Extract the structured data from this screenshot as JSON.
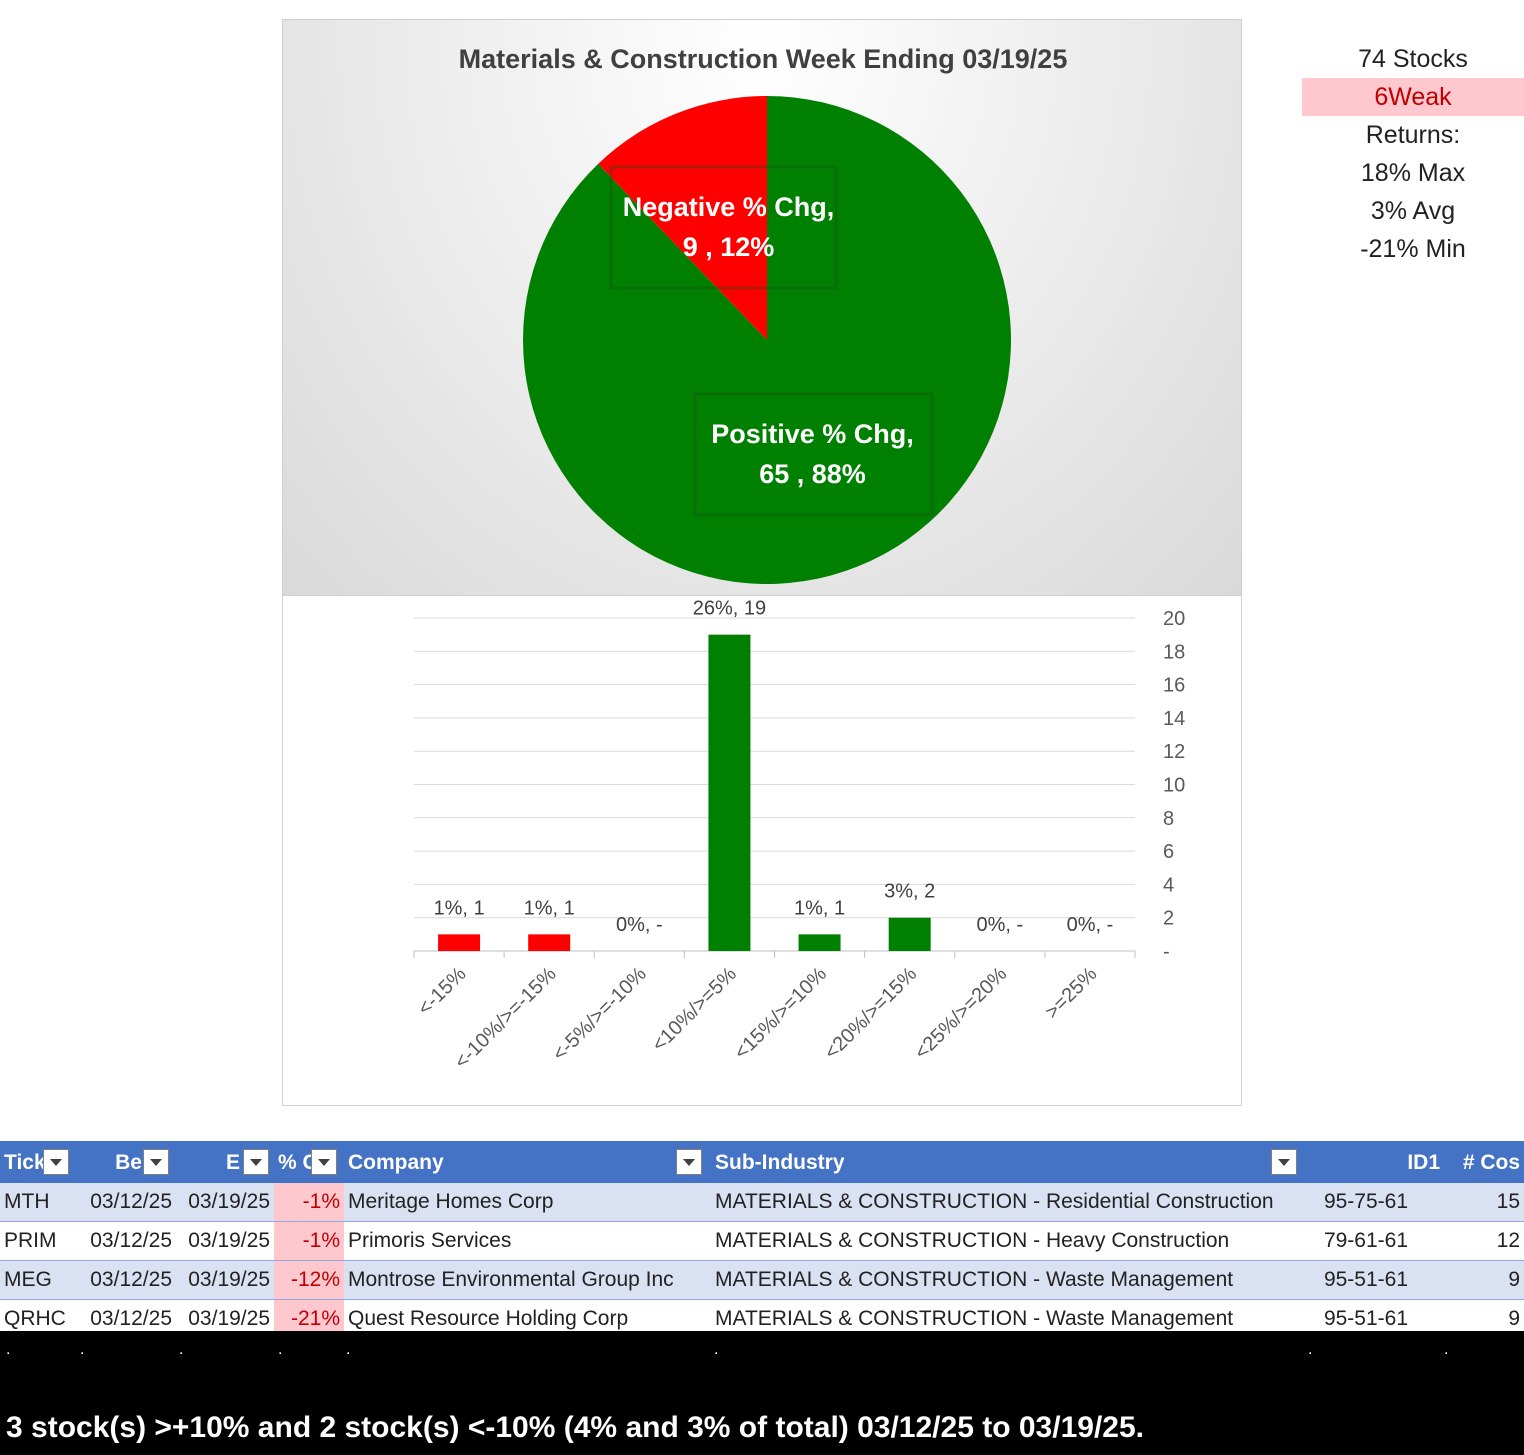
{
  "pie_chart": {
    "title": "Materials & Construction Week Ending 03/19/25",
    "slices": [
      {
        "name": "Negative % Chg",
        "count": 9,
        "pct": "12%",
        "color": "#ff0000"
      },
      {
        "name": "Positive % Chg",
        "count": 65,
        "pct": "88%",
        "color": "#008000"
      }
    ],
    "labels": {
      "negative_line1": "Negative % Chg,",
      "negative_line2": "9 , 12%",
      "positive_line1": "Positive % Chg,",
      "positive_line2": "65 , 88%"
    }
  },
  "chart_data": {
    "type": "bar",
    "categories": [
      "<-15%",
      "<-10%/>=-15%",
      "<-5%/>=-10%",
      "<10%/>=5%",
      "<15%/>=10%",
      "<20%/>=15%",
      "<25%/>=20%",
      ">=25%"
    ],
    "values": [
      1,
      1,
      0,
      19,
      1,
      2,
      0,
      0
    ],
    "data_labels": [
      "1%,  1",
      "1%,  1",
      "0%,  -",
      "26%,  19",
      "1%,  1",
      "3%,  2",
      "0%,  -",
      "0%,  -"
    ],
    "colors": [
      "#ff0000",
      "#ff0000",
      "#ff0000",
      "#008000",
      "#008000",
      "#008000",
      "#008000",
      "#008000"
    ],
    "ylim": [
      0,
      20
    ],
    "yticks": [
      0,
      2,
      4,
      6,
      8,
      10,
      12,
      14,
      16,
      18,
      20
    ],
    "ytick_labels": [
      "-",
      "2",
      "4",
      "6",
      "8",
      "10",
      "12",
      "14",
      "16",
      "18",
      "20"
    ],
    "y_axis_side": "right",
    "grid": true
  },
  "stats": {
    "stocks": "74 Stocks",
    "weak": "6Weak",
    "returns": "Returns:",
    "max": "18% Max",
    "avg": "3% Avg",
    "min": "-21% Min"
  },
  "table": {
    "headers": [
      "Tick",
      "Be",
      "E",
      "% C",
      "Company",
      "Sub-Industry",
      "ID1",
      "# Cos"
    ],
    "rows": [
      [
        "MTH",
        "03/12/25",
        "03/19/25",
        "-1%",
        "Meritage Homes Corp",
        "MATERIALS & CONSTRUCTION - Residential Construction",
        "95-75-61",
        "15"
      ],
      [
        "PRIM",
        "03/12/25",
        "03/19/25",
        "-1%",
        "Primoris Services",
        "MATERIALS & CONSTRUCTION - Heavy Construction",
        "79-61-61",
        "12"
      ],
      [
        "MEG",
        "03/12/25",
        "03/19/25",
        "-12%",
        "Montrose Environmental Group Inc",
        "MATERIALS & CONSTRUCTION - Waste Management",
        "95-51-61",
        "9"
      ],
      [
        "QRHC",
        "03/12/25",
        "03/19/25",
        "-21%",
        "Quest Resource Holding Corp",
        "MATERIALS & CONSTRUCTION - Waste Management",
        "95-51-61",
        "9"
      ]
    ]
  },
  "footer": {
    "dots": [
      ".",
      ".",
      ".",
      ".",
      ".",
      ".",
      ".",
      "."
    ],
    "summary": "3 stock(s) >+10% and 2 stock(s) <-10% (4% and 3% of total) 03/12/25 to 03/19/25."
  }
}
